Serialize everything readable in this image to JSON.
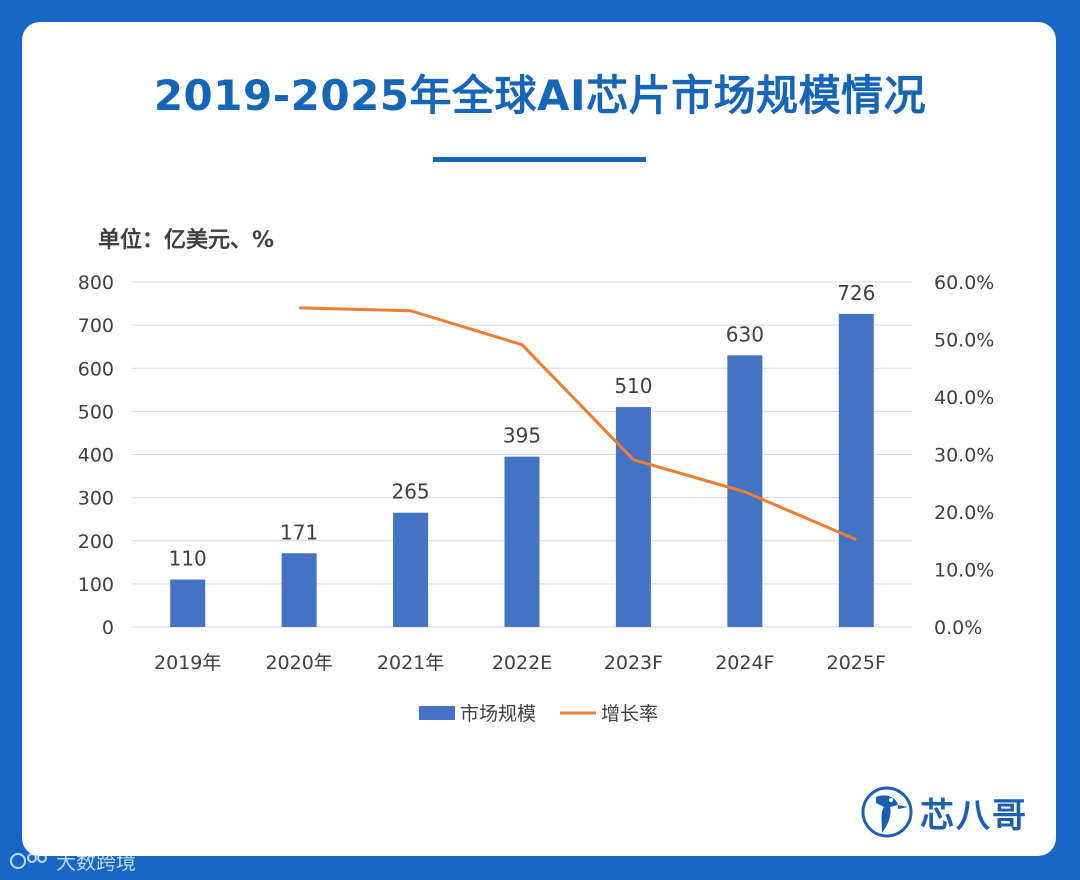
{
  "header": {
    "title": "2019-2025年全球AI芯片市场规模情况"
  },
  "colors": {
    "background": "#1666c4",
    "title": "#1565b8",
    "bar": "#4472c4",
    "line": "#ed7d31",
    "axis_text": "#404040"
  },
  "chart_data": {
    "type": "bar",
    "unit_label": "单位：亿美元、%",
    "categories": [
      "2019年",
      "2020年",
      "2021年",
      "2022E",
      "2023F",
      "2024F",
      "2025F"
    ],
    "series": [
      {
        "name": "市场规模",
        "type": "bar",
        "axis": "left",
        "values": [
          110,
          171,
          265,
          395,
          510,
          630,
          726
        ]
      },
      {
        "name": "增长率",
        "type": "line",
        "axis": "right",
        "values": [
          null,
          55.5,
          55.0,
          49.1,
          29.1,
          23.5,
          15.2
        ]
      }
    ],
    "left_axis": {
      "min": 0,
      "max": 800,
      "ticks": [
        "0",
        "100",
        "200",
        "300",
        "400",
        "500",
        "600",
        "700",
        "800"
      ]
    },
    "right_axis": {
      "min": 0,
      "max": 60,
      "ticks": [
        "0.0%",
        "10.0%",
        "20.0%",
        "30.0%",
        "40.0%",
        "50.0%",
        "60.0%"
      ]
    },
    "bar_labels": [
      "110",
      "171",
      "265",
      "395",
      "510",
      "630",
      "726"
    ],
    "legend": [
      "市场规模",
      "增长率"
    ],
    "legend_position": "bottom",
    "grid": true
  },
  "brand": {
    "logo_text": "芯八哥",
    "logo_icon": "kingfisher-icon"
  },
  "watermark": {
    "bottom_text": "大数跨境",
    "icon": "brand-mark-icon"
  }
}
